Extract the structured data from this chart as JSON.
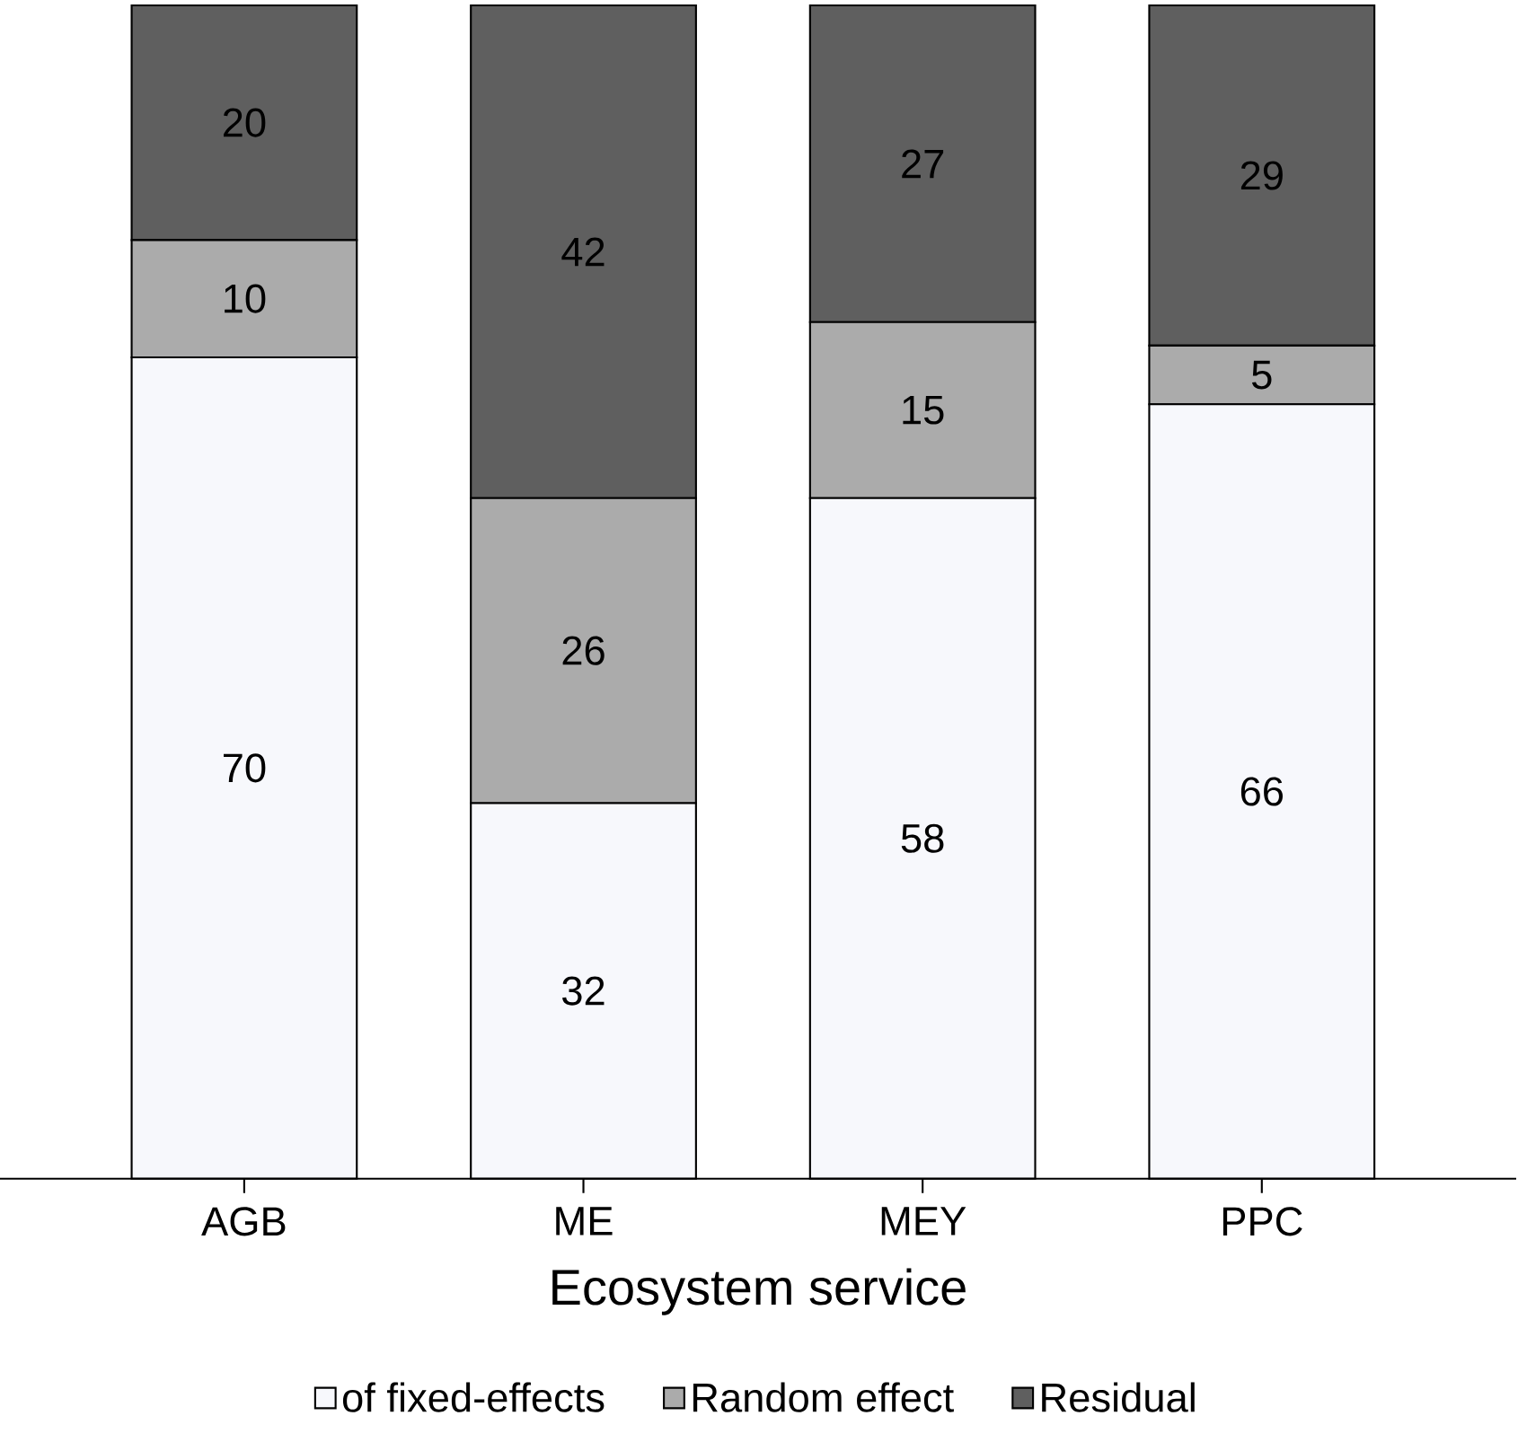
{
  "chart_data": {
    "type": "bar",
    "stacked": true,
    "xlabel": "Ecosystem service",
    "categories": [
      "AGB",
      "ME",
      "MEY",
      "PPC"
    ],
    "series": [
      {
        "name": "of fixed-effects",
        "color": "#f7f8fc",
        "values": [
          70,
          32,
          58,
          66
        ]
      },
      {
        "name": "Random effect",
        "color": "#ababab",
        "values": [
          10,
          26,
          15,
          5
        ]
      },
      {
        "name": "Residual",
        "color": "#5f5f5f",
        "values": [
          20,
          42,
          27,
          29
        ]
      }
    ],
    "data_labels": true,
    "legend": "bottom"
  }
}
